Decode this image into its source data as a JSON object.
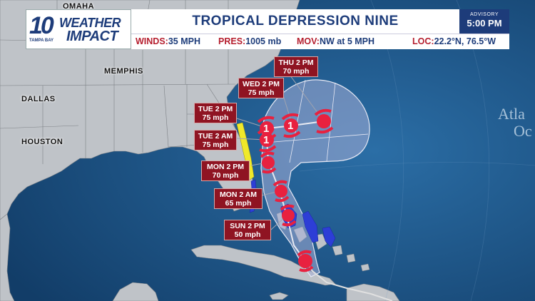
{
  "header": {
    "logo": {
      "number": "10",
      "line1": "WEATHER",
      "line2": "IMPACT",
      "sub": "TAMPA BAY"
    },
    "title": "TROPICAL DEPRESSION NINE",
    "advisory_label": "ADVISORY",
    "advisory_time": "5:00 PM"
  },
  "stats": {
    "winds_label": "WINDS:",
    "winds_value": "35 MPH",
    "pres_label": "PRES:",
    "pres_value": "1005 mb",
    "mov_label": "MOV:",
    "mov_value": "NW at 5 MPH",
    "loc_label": "LOC:",
    "loc_value": "22.2°N, 76.5°W"
  },
  "cities": {
    "omaha": "OMAHA",
    "memphis": "MEMPHIS",
    "dallas": "DALLAS",
    "houston": "HOUSTON"
  },
  "ocean_label": {
    "line1": "Atla",
    "line2": "Oc"
  },
  "forecast_points": [
    {
      "date": "THU 2 PM",
      "wind": "70 mph",
      "category": ""
    },
    {
      "date": "WED 2 PM",
      "wind": "75 mph",
      "category": "1"
    },
    {
      "date": "TUE 2 PM",
      "wind": "75 mph",
      "category": "1"
    },
    {
      "date": "TUE 2 AM",
      "wind": "75 mph",
      "category": "1"
    },
    {
      "date": "MON 2 PM",
      "wind": "70 mph",
      "category": ""
    },
    {
      "date": "MON 2 AM",
      "wind": "65 mph",
      "category": ""
    },
    {
      "date": "SUN 2 PM",
      "wind": "50 mph",
      "category": ""
    }
  ],
  "colors": {
    "ocean": "#1a4f7f",
    "land": "#bfc3c8",
    "cone": "#aab4d8",
    "track": "#e0e0e0",
    "storm_marker": "#e8213f",
    "hurricane_watch": "#f0e92a",
    "tropical_storm_warning": "#2d3ed6",
    "label_bg": "#8f1422",
    "brand": "#1d3c7a",
    "accent": "#b51e2e"
  }
}
